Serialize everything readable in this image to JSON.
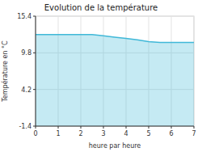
{
  "chart_data": {
    "type": "area",
    "title": "Evolution de la température",
    "x_label": "heure par heure",
    "y_label": "Température en °C",
    "x": [
      0,
      0.5,
      1.0,
      1.5,
      2.0,
      2.5,
      3.0,
      3.5,
      4.0,
      4.5,
      5.0,
      5.5,
      6.0,
      6.5,
      7.0
    ],
    "values": [
      12.6,
      12.6,
      12.6,
      12.6,
      12.6,
      12.6,
      12.4,
      12.2,
      12.0,
      11.8,
      11.5,
      11.4,
      11.4,
      11.4,
      11.4
    ],
    "color": "#40b8d8",
    "xlim": [
      0,
      7
    ],
    "ylim": [
      -1.4,
      15.4
    ],
    "xticks": [
      0,
      1,
      2,
      3,
      4,
      5,
      6,
      7
    ],
    "yticks": [
      -1.4,
      4.2,
      9.8,
      15.4
    ],
    "grid": true
  }
}
